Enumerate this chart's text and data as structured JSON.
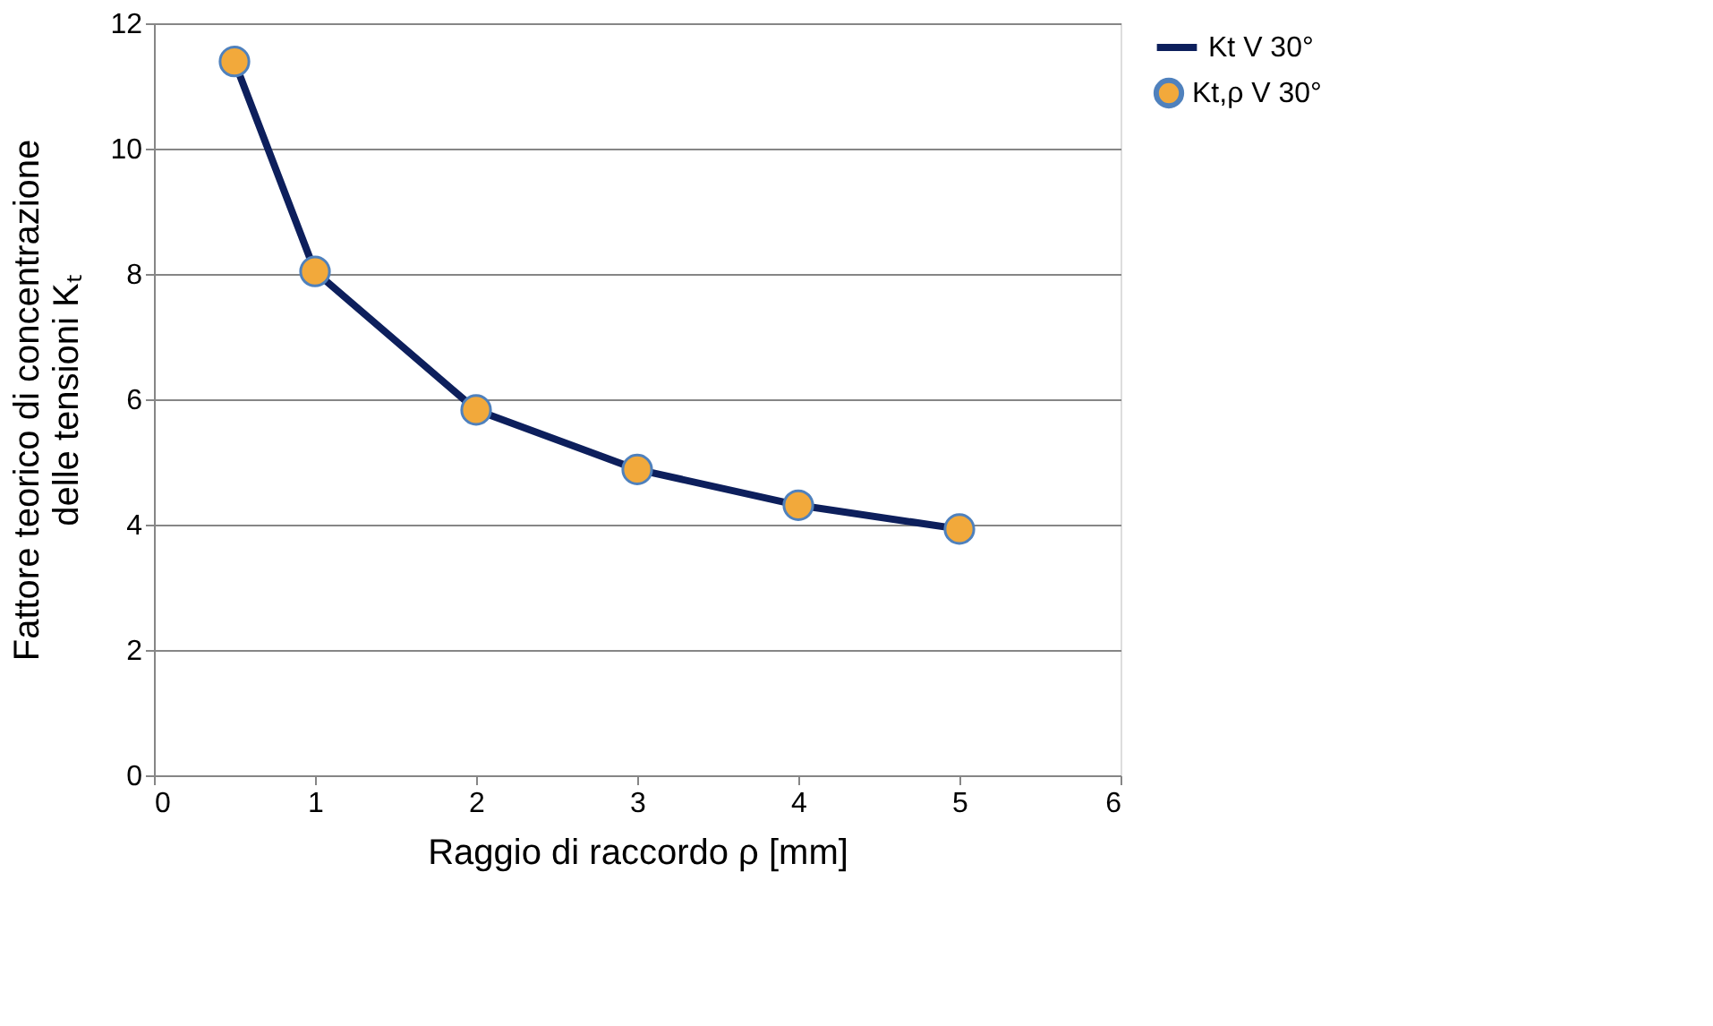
{
  "chart_data": {
    "type": "line",
    "xlabel": "Raggio di raccordo ρ [mm]",
    "ylabel": "Fattore teorico di concentrazione\ndelle tensioni Kₜ",
    "x": [
      0.5,
      1,
      2,
      3,
      4,
      5
    ],
    "series": [
      {
        "name": "Kt,ρ V 30°",
        "type": "scatter",
        "color": "#f2a93b",
        "marker": "circle",
        "values": [
          11.39,
          8.04,
          5.83,
          4.88,
          4.31,
          3.93
        ]
      },
      {
        "name": "Kt V 30°",
        "color": "#0d1f5c",
        "line_style": "solid",
        "values": [
          11.39,
          8.04,
          5.83,
          4.88,
          4.31,
          3.93
        ]
      }
    ],
    "xlim": [
      0,
      6
    ],
    "xticks": [
      0,
      1,
      2,
      3,
      4,
      5,
      6
    ],
    "ylim": [
      0,
      12
    ],
    "yticks": [
      0,
      2,
      4,
      6,
      8,
      10,
      12
    ],
    "grid": "y",
    "legend": "right"
  }
}
